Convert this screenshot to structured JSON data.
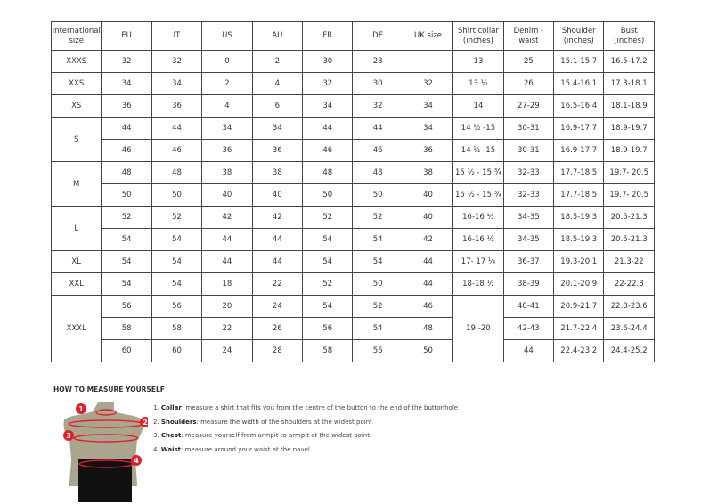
{
  "table": {
    "headers": [
      "International size",
      "EU",
      "IT",
      "US",
      "AU",
      "FR",
      "DE",
      "UK size",
      "Shirt collar (inches)",
      "Denim - waist",
      "Shoulder (inches)",
      "Bust (inches)"
    ],
    "groups": [
      {
        "size": "XXXS",
        "rows": [
          [
            "32",
            "32",
            "0",
            "2",
            "30",
            "28",
            "",
            "13",
            "25",
            "15.1-15.7",
            "16.5-17.2"
          ]
        ]
      },
      {
        "size": "XXS",
        "rows": [
          [
            "34",
            "34",
            "2",
            "4",
            "32",
            "30",
            "32",
            "13 ½",
            "26",
            "15.4-16.1",
            "17.3-18.1"
          ]
        ]
      },
      {
        "size": "XS",
        "rows": [
          [
            "36",
            "36",
            "4",
            "6",
            "34",
            "32",
            "34",
            "14",
            "27-29",
            "16.5-16.4",
            "18.1-18.9"
          ]
        ]
      },
      {
        "size": "S",
        "rows": [
          [
            "44",
            "44",
            "34",
            "34",
            "44",
            "44",
            "34",
            "14 ½ -15",
            "30-31",
            "16.9-17.7",
            "18.9-19.7"
          ],
          [
            "46",
            "46",
            "36",
            "36",
            "46",
            "46",
            "36",
            "14 ½ -15",
            "30-31",
            "16.9-17.7",
            "18.9-19.7"
          ]
        ]
      },
      {
        "size": "M",
        "rows": [
          [
            "48",
            "48",
            "38",
            "38",
            "48",
            "48",
            "38",
            "15 ½ - 15 ¾",
            "32-33",
            "17.7-18.5",
            "19.7- 20.5"
          ],
          [
            "50",
            "50",
            "40",
            "40",
            "50",
            "50",
            "40",
            "15 ½ - 15 ¾",
            "32-33",
            "17.7-18.5",
            "19.7- 20.5"
          ]
        ]
      },
      {
        "size": "L",
        "rows": [
          [
            "52",
            "52",
            "42",
            "42",
            "52",
            "52",
            "40",
            "16-16 ½",
            "34-35",
            "18.5-19.3",
            "20.5-21.3"
          ],
          [
            "54",
            "54",
            "44",
            "44",
            "54",
            "54",
            "42",
            "16-16 ½",
            "34-35",
            "18.5-19.3",
            "20.5-21.3"
          ]
        ]
      },
      {
        "size": "XL",
        "rows": [
          [
            "54",
            "54",
            "44",
            "44",
            "54",
            "54",
            "44",
            "17- 17 ¼",
            "36-37",
            "19.3-20.1",
            "21.3-22"
          ]
        ]
      },
      {
        "size": "XXL",
        "rows": [
          [
            "54",
            "54",
            "18",
            "22",
            "52",
            "50",
            "44",
            "18-18 ½",
            "38-39",
            "20.1-20.9",
            "22-22.8"
          ]
        ]
      },
      {
        "size": "XXXL",
        "merged_collar": "19 -20",
        "rows": [
          [
            "56",
            "56",
            "20",
            "24",
            "54",
            "52",
            "46",
            null,
            "40-41",
            "20.9-21.7",
            "22.8-23.6"
          ],
          [
            "58",
            "58",
            "22",
            "26",
            "56",
            "54",
            "48",
            null,
            "42-43",
            "21.7-22.4",
            "23.6-24.4"
          ],
          [
            "60",
            "60",
            "24",
            "28",
            "58",
            "56",
            "50",
            null,
            "44",
            "22.4-23.2",
            "24.4-25.2"
          ]
        ]
      }
    ]
  },
  "guide": {
    "title": "HOW TO MEASURE YOURSELF",
    "steps": [
      {
        "num": "1.",
        "term": "Collar",
        "text": ": measure a shirt that fits you from the centre of the button to the end of the buttonhole"
      },
      {
        "num": "2.",
        "term": "Shoulders",
        "text": ": measure the width of the shoulders at the widest point"
      },
      {
        "num": "3.",
        "term": "Chest",
        "text": ": measure yourself from armpit to armpit at the widest point"
      },
      {
        "num": "4.",
        "term": "Waist",
        "text": ": measure around your waist at the navel"
      }
    ],
    "markers": [
      "1",
      "2",
      "3",
      "4"
    ],
    "colors": {
      "marker": "#e0202c",
      "body": "#a9a58f",
      "shorts": "#111111"
    }
  }
}
